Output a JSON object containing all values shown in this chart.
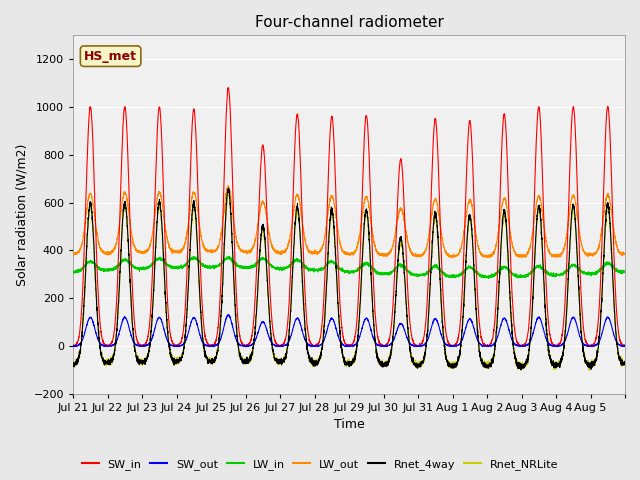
{
  "title": "Four-channel radiometer",
  "xlabel": "Time",
  "ylabel": "Solar radiation (W/m2)",
  "ylim": [
    -200,
    1300
  ],
  "yticks": [
    -200,
    0,
    200,
    400,
    600,
    800,
    1000,
    1200
  ],
  "num_days": 16,
  "colors": {
    "SW_in": "#ff0000",
    "SW_out": "#0000ff",
    "LW_in": "#00cc00",
    "LW_out": "#ff8800",
    "Rnet_4way": "#000000",
    "Rnet_NRLite": "#cccc00"
  },
  "legend_label": "HS_met",
  "background_color": "#e8e8e8",
  "plot_bg_color": "#f0f0f0",
  "grid_color": "#ffffff",
  "tick_positions": [
    0,
    1,
    2,
    3,
    4,
    5,
    6,
    7,
    8,
    9,
    10,
    11,
    12,
    13,
    14,
    15,
    16
  ],
  "tick_labels": [
    "Jul 21",
    "Jul 22",
    "Jul 23",
    "Jul 24",
    "Jul 25",
    "Jul 26",
    "Jul 27",
    "Jul 28",
    "Jul 29",
    "Jul 30",
    "Jul 31",
    "Aug 1",
    "Aug 2",
    "Aug 3",
    "Aug 4",
    "Aug 5",
    ""
  ],
  "day_peaks_SWin": [
    1000,
    1000,
    1000,
    990,
    1080,
    840,
    970,
    960,
    965,
    780,
    950,
    940,
    970,
    1000,
    1000,
    1000
  ]
}
